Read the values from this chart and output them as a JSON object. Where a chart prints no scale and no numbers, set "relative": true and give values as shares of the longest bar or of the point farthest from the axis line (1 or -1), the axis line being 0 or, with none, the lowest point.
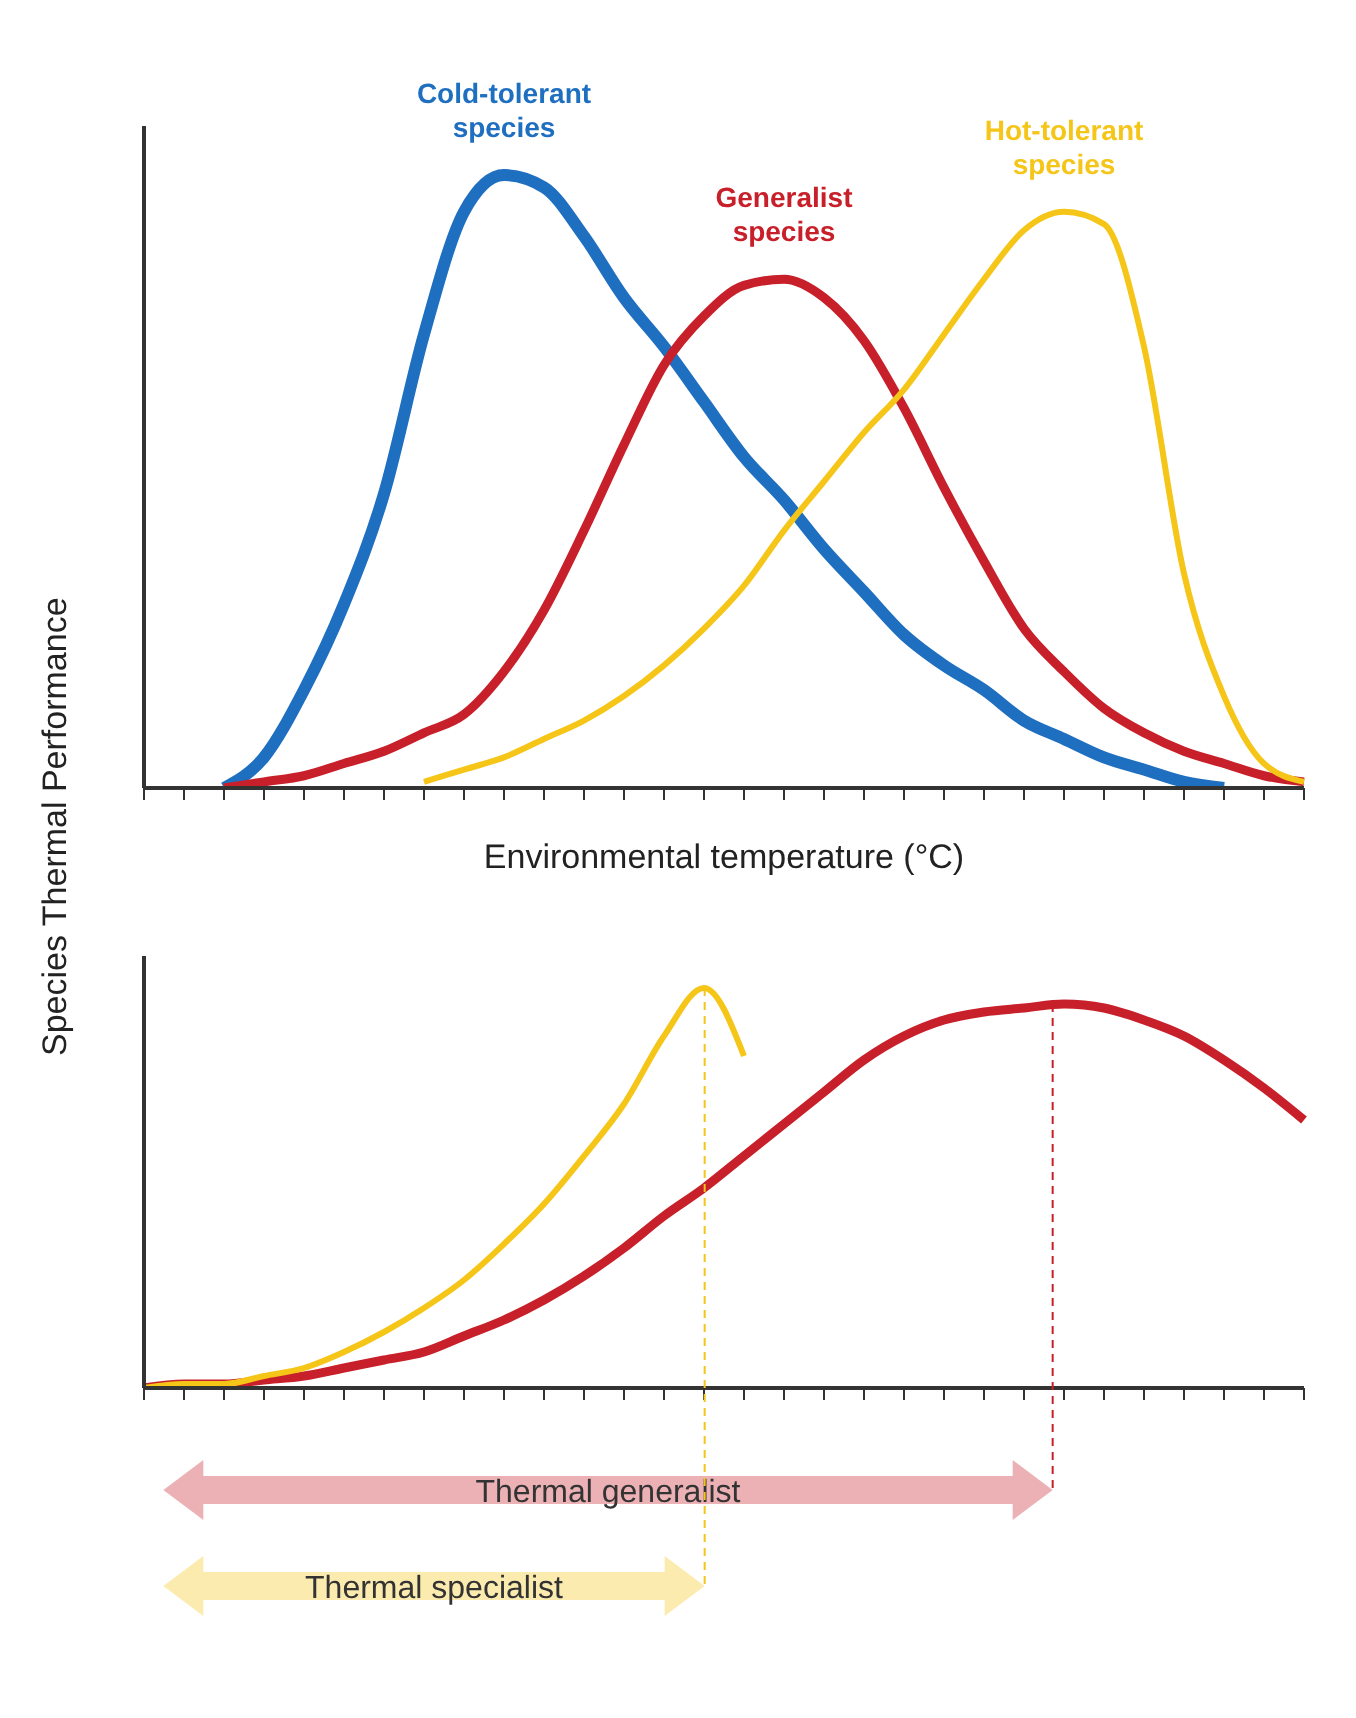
{
  "chart_data": [
    {
      "type": "line",
      "relative": true,
      "ylabel": "Species Thermal Performance",
      "xlabel": "Environmental temperature (°C)",
      "marker": "none",
      "categories": [
        null,
        null,
        null,
        null,
        null,
        null,
        null,
        null,
        null,
        null,
        null,
        null,
        null,
        null,
        null,
        null,
        null,
        null,
        null,
        null,
        null,
        null,
        null,
        null,
        null,
        null,
        null,
        null,
        null,
        null
      ],
      "series": [
        {
          "name": "Cold-tolerant species",
          "color": "#1f6fc0",
          "values": [
            null,
            null,
            0,
            0.05,
            0.16,
            0.3,
            0.48,
            0.74,
            0.94,
            1,
            0.98,
            0.9,
            0.8,
            0.72,
            0.63,
            0.54,
            0.47,
            0.39,
            0.32,
            0.25,
            0.2,
            0.16,
            0.11,
            0.08,
            0.05,
            0.03,
            0.01,
            0,
            null,
            null
          ]
        },
        {
          "name": "Generalist species",
          "color": "#c8202a",
          "values": [
            null,
            null,
            0,
            0.01,
            0.02,
            0.04,
            0.06,
            0.09,
            0.12,
            0.19,
            0.29,
            0.42,
            0.56,
            0.69,
            0.77,
            0.82,
            0.83,
            0.8,
            0.73,
            0.62,
            0.49,
            0.37,
            0.26,
            0.19,
            0.13,
            0.09,
            0.06,
            0.04,
            0.02,
            0.01
          ]
        },
        {
          "name": "Hot-tolerant species",
          "color": "#f5c518",
          "values": [
            null,
            null,
            null,
            null,
            null,
            null,
            null,
            0.01,
            0.03,
            0.05,
            0.08,
            0.11,
            0.15,
            0.2,
            0.26,
            0.33,
            0.42,
            0.5,
            0.58,
            0.65,
            0.74,
            0.83,
            0.91,
            0.94,
            0.92,
            0.72,
            0.35,
            0.15,
            0.04,
            0.01
          ]
        }
      ]
    },
    {
      "type": "line",
      "relative": true,
      "marker": "none",
      "categories": [
        null,
        null,
        null,
        null,
        null,
        null,
        null,
        null,
        null,
        null,
        null,
        null,
        null,
        null,
        null,
        null,
        null,
        null,
        null,
        null,
        null,
        null,
        null,
        null,
        null,
        null,
        null,
        null,
        null,
        null
      ],
      "series": [
        {
          "color": "#c8202a",
          "values": [
            0,
            0.01,
            0.01,
            0.02,
            0.03,
            0.05,
            0.07,
            0.09,
            0.13,
            0.17,
            0.22,
            0.28,
            0.35,
            0.43,
            0.5,
            0.58,
            0.66,
            0.74,
            0.82,
            0.88,
            0.92,
            0.94,
            0.95,
            0.96,
            0.95,
            0.92,
            0.88,
            0.82,
            0.75,
            0.67
          ]
        },
        {
          "color": "#f5c518",
          "values": [
            0,
            0.01,
            0.01,
            0.03,
            0.05,
            0.09,
            0.14,
            0.2,
            0.27,
            0.36,
            0.46,
            0.58,
            0.71,
            0.88,
            1,
            0.83,
            null,
            null,
            null,
            null,
            null,
            null,
            null,
            null,
            null,
            null,
            null,
            null,
            null,
            null
          ]
        }
      ],
      "annotations": [
        "Thermal generalist",
        "Thermal specialist"
      ]
    }
  ]
}
